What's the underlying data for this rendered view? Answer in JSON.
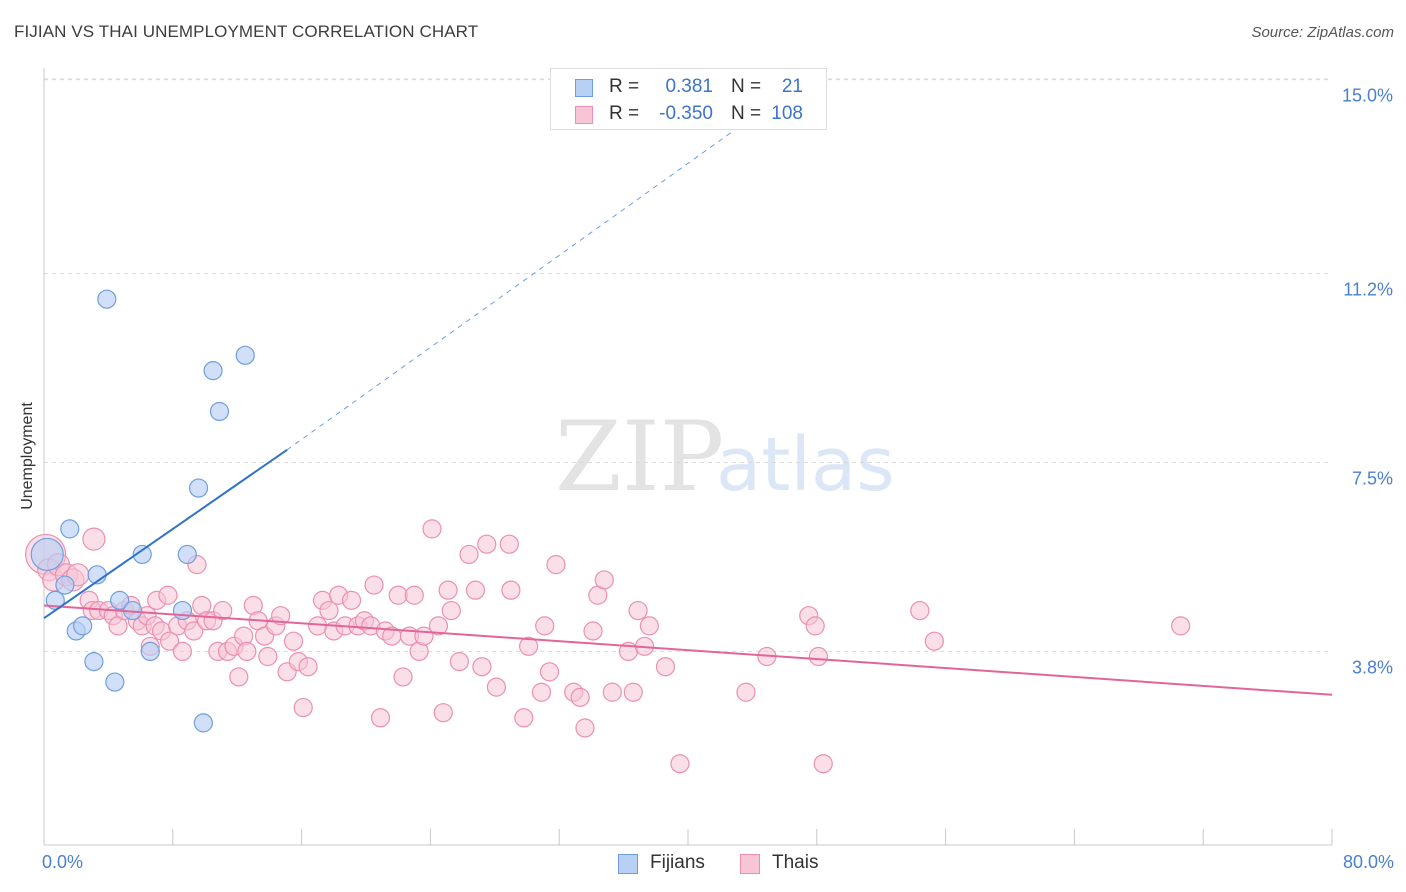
{
  "title": "FIJIAN VS THAI UNEMPLOYMENT CORRELATION CHART",
  "source": "Source: ZipAtlas.com",
  "watermark": {
    "zip": "ZIP",
    "atlas": "atlas"
  },
  "colors": {
    "fijians_fill": "#b8d0f4",
    "fijians_stroke": "#6e9ee0",
    "fijians_line": "#2f72cc",
    "thais_fill": "#f8c5d6",
    "thais_stroke": "#ec8fb0",
    "thais_line": "#e2659a",
    "tick_label": "#4a7fd0",
    "grid": "#d9d9d9"
  },
  "legend": {
    "fijians": {
      "r_label": "R =",
      "r_value": "0.381",
      "n_label": "N =",
      "n_value": "21"
    },
    "thais": {
      "r_label": "R =",
      "r_value": "-0.350",
      "n_label": "N =",
      "n_value": "108"
    }
  },
  "bottom_legend": {
    "fijians": "Fijians",
    "thais": "Thais"
  },
  "chart_data": {
    "type": "scatter",
    "title": "FIJIAN VS THAI UNEMPLOYMENT CORRELATION CHART",
    "xlabel": "",
    "ylabel": "Unemployment",
    "xlim": [
      0,
      80
    ],
    "ylim": [
      0,
      15.5
    ],
    "x_tick_labels": [
      "0.0%",
      "80.0%"
    ],
    "y_ticks": [
      3.8,
      7.5,
      11.2,
      15.0
    ],
    "y_tick_labels": [
      "3.8%",
      "7.5%",
      "11.2%",
      "15.0%"
    ],
    "grid": "horizontal dashed",
    "legend_placement": "top-center and bottom",
    "series": [
      {
        "name": "Fijians",
        "r": 0.381,
        "n": 21,
        "trend": {
          "x": [
            0,
            15.1
          ],
          "y": [
            4.45,
            7.75
          ],
          "dashed_extension_to": [
            45.5,
            14.6
          ]
        },
        "points": [
          [
            0.2,
            5.7,
            16
          ],
          [
            0.7,
            4.8,
            9
          ],
          [
            1.3,
            5.1,
            9
          ],
          [
            1.6,
            6.2,
            9
          ],
          [
            2.0,
            4.2,
            9
          ],
          [
            2.4,
            4.3,
            9
          ],
          [
            3.1,
            3.6,
            9
          ],
          [
            3.3,
            5.3,
            9
          ],
          [
            3.9,
            10.7,
            9
          ],
          [
            4.4,
            3.2,
            9
          ],
          [
            4.7,
            4.8,
            9
          ],
          [
            5.5,
            4.6,
            9
          ],
          [
            6.1,
            5.7,
            9
          ],
          [
            6.6,
            3.8,
            9
          ],
          [
            8.6,
            4.6,
            9
          ],
          [
            8.9,
            5.7,
            9
          ],
          [
            9.6,
            7.0,
            9
          ],
          [
            9.9,
            2.4,
            9
          ],
          [
            10.5,
            9.3,
            9
          ],
          [
            10.9,
            8.5,
            9
          ],
          [
            12.5,
            9.6,
            9
          ]
        ]
      },
      {
        "name": "Thais",
        "r": -0.35,
        "n": 108,
        "trend": {
          "x": [
            0,
            80
          ],
          "y": [
            4.7,
            2.95
          ]
        },
        "points": [
          [
            0.1,
            5.7,
            20
          ],
          [
            0.3,
            5.4,
            11
          ],
          [
            0.6,
            5.2,
            11
          ],
          [
            0.9,
            5.5,
            11
          ],
          [
            1.4,
            5.3,
            11
          ],
          [
            1.8,
            5.2,
            11
          ],
          [
            2.1,
            5.3,
            11
          ],
          [
            2.8,
            4.8,
            9
          ],
          [
            3.0,
            4.6,
            9
          ],
          [
            3.1,
            6.0,
            11
          ],
          [
            3.4,
            4.6,
            9
          ],
          [
            4.0,
            4.6,
            9
          ],
          [
            4.3,
            4.5,
            9
          ],
          [
            4.6,
            4.3,
            9
          ],
          [
            5.0,
            4.6,
            9
          ],
          [
            5.4,
            4.7,
            9
          ],
          [
            5.8,
            4.4,
            9
          ],
          [
            6.1,
            4.3,
            9
          ],
          [
            6.4,
            4.5,
            9
          ],
          [
            6.6,
            3.9,
            9
          ],
          [
            6.9,
            4.3,
            9
          ],
          [
            7.0,
            4.8,
            9
          ],
          [
            7.3,
            4.2,
            9
          ],
          [
            7.7,
            4.9,
            9
          ],
          [
            7.8,
            4.0,
            9
          ],
          [
            8.3,
            4.3,
            9
          ],
          [
            8.6,
            3.8,
            9
          ],
          [
            8.9,
            4.4,
            9
          ],
          [
            9.3,
            4.2,
            9
          ],
          [
            9.5,
            5.5,
            9
          ],
          [
            9.8,
            4.7,
            9
          ],
          [
            10.1,
            4.4,
            9
          ],
          [
            10.5,
            4.4,
            9
          ],
          [
            10.8,
            3.8,
            9
          ],
          [
            11.1,
            4.6,
            9
          ],
          [
            11.4,
            3.8,
            9
          ],
          [
            11.8,
            3.9,
            9
          ],
          [
            12.1,
            3.3,
            9
          ],
          [
            12.4,
            4.1,
            9
          ],
          [
            12.6,
            3.8,
            9
          ],
          [
            13.0,
            4.7,
            9
          ],
          [
            13.3,
            4.4,
            9
          ],
          [
            13.7,
            4.1,
            9
          ],
          [
            13.9,
            3.7,
            9
          ],
          [
            14.4,
            4.3,
            9
          ],
          [
            14.7,
            4.5,
            9
          ],
          [
            15.1,
            3.4,
            9
          ],
          [
            15.5,
            4.0,
            9
          ],
          [
            15.8,
            3.6,
            9
          ],
          [
            16.1,
            2.7,
            9
          ],
          [
            16.4,
            3.5,
            9
          ],
          [
            17.0,
            4.3,
            9
          ],
          [
            17.3,
            4.8,
            9
          ],
          [
            17.7,
            4.6,
            9
          ],
          [
            18.0,
            4.2,
            9
          ],
          [
            18.3,
            4.9,
            9
          ],
          [
            18.7,
            4.3,
            9
          ],
          [
            19.1,
            4.8,
            9
          ],
          [
            19.5,
            4.3,
            9
          ],
          [
            19.9,
            4.4,
            9
          ],
          [
            20.3,
            4.3,
            9
          ],
          [
            20.5,
            5.1,
            9
          ],
          [
            20.9,
            2.5,
            9
          ],
          [
            21.2,
            4.2,
            9
          ],
          [
            21.6,
            4.1,
            9
          ],
          [
            22.0,
            4.9,
            9
          ],
          [
            22.3,
            3.3,
            9
          ],
          [
            22.7,
            4.1,
            9
          ],
          [
            23.0,
            4.9,
            9
          ],
          [
            23.3,
            3.8,
            9
          ],
          [
            23.6,
            4.1,
            9
          ],
          [
            24.1,
            6.2,
            9
          ],
          [
            24.5,
            4.3,
            9
          ],
          [
            24.8,
            2.6,
            9
          ],
          [
            25.1,
            5.0,
            9
          ],
          [
            25.3,
            4.6,
            9
          ],
          [
            25.8,
            3.6,
            9
          ],
          [
            26.4,
            5.7,
            9
          ],
          [
            26.8,
            5.0,
            9
          ],
          [
            27.2,
            3.5,
            9
          ],
          [
            27.5,
            5.9,
            9
          ],
          [
            28.1,
            3.1,
            9
          ],
          [
            28.9,
            5.9,
            9
          ],
          [
            29.0,
            5.0,
            9
          ],
          [
            29.8,
            2.5,
            9
          ],
          [
            30.1,
            3.9,
            9
          ],
          [
            30.9,
            3.0,
            9
          ],
          [
            31.1,
            4.3,
            9
          ],
          [
            31.4,
            3.4,
            9
          ],
          [
            31.8,
            5.5,
            9
          ],
          [
            32.9,
            3.0,
            9
          ],
          [
            33.3,
            2.9,
            9
          ],
          [
            33.6,
            2.3,
            9
          ],
          [
            34.1,
            4.2,
            9
          ],
          [
            34.4,
            4.9,
            9
          ],
          [
            34.8,
            5.2,
            9
          ],
          [
            35.3,
            3.0,
            9
          ],
          [
            36.3,
            3.8,
            9
          ],
          [
            36.6,
            3.0,
            9
          ],
          [
            36.9,
            4.6,
            9
          ],
          [
            37.3,
            3.9,
            9
          ],
          [
            37.6,
            4.3,
            9
          ],
          [
            38.6,
            3.5,
            9
          ],
          [
            39.5,
            1.6,
            9
          ],
          [
            43.6,
            3.0,
            9
          ],
          [
            44.9,
            3.7,
            9
          ],
          [
            47.5,
            4.5,
            9
          ],
          [
            47.9,
            4.3,
            9
          ],
          [
            48.1,
            3.7,
            9
          ],
          [
            48.4,
            1.6,
            9
          ],
          [
            54.4,
            4.6,
            9
          ],
          [
            55.3,
            4.0,
            9
          ],
          [
            70.6,
            4.3,
            9
          ]
        ]
      }
    ]
  }
}
